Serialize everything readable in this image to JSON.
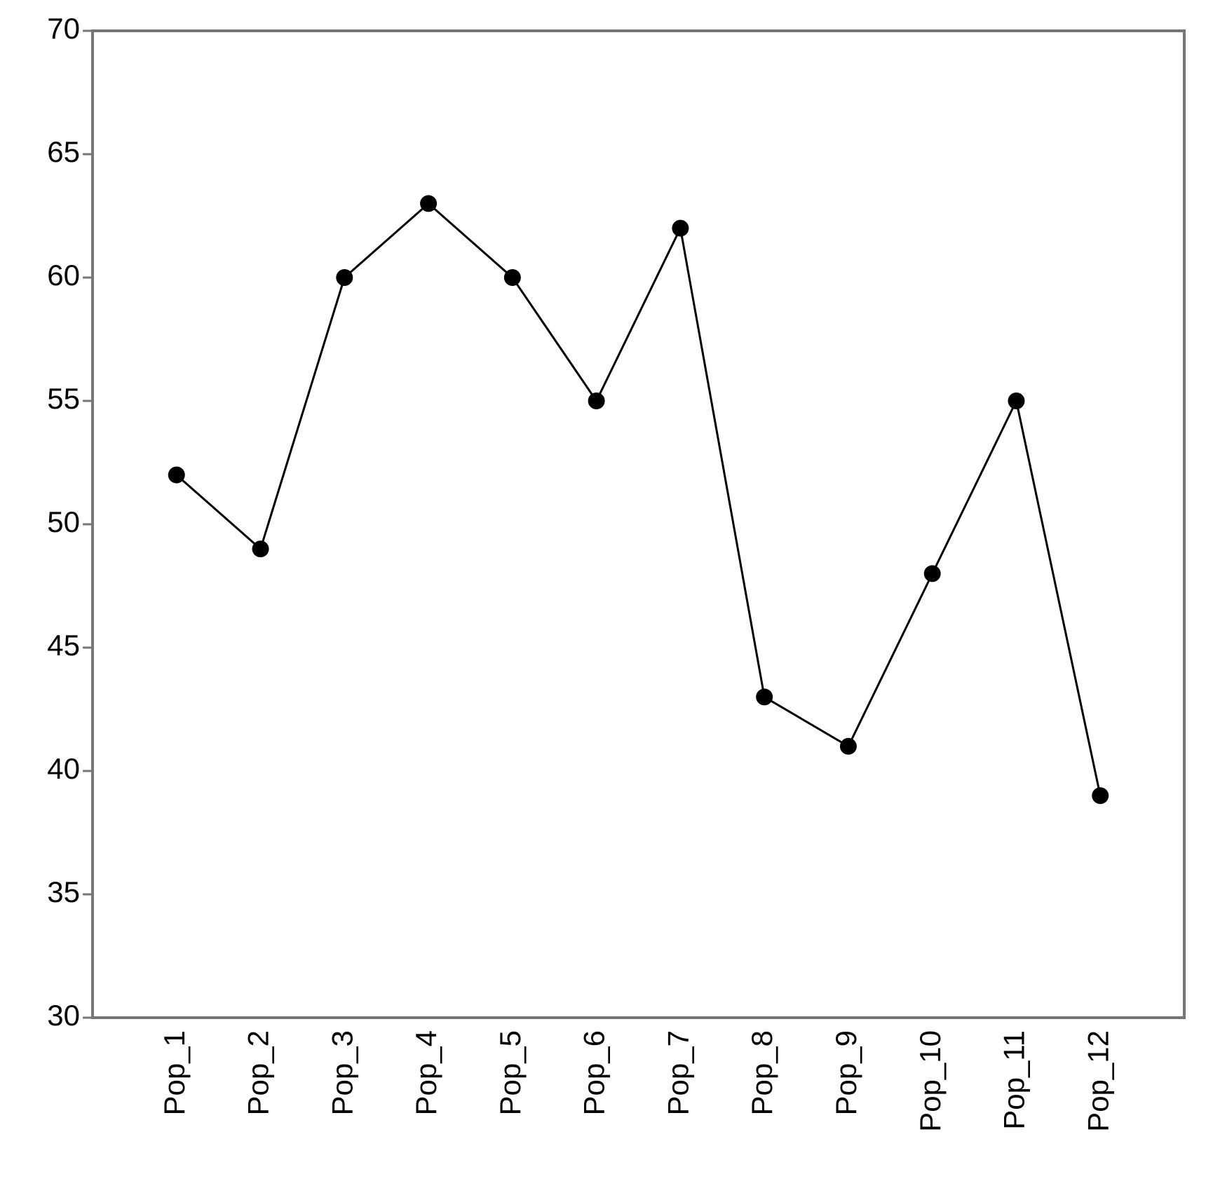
{
  "chart_data": {
    "type": "line",
    "categories": [
      "Pop_1",
      "Pop_2",
      "Pop_3",
      "Pop_4",
      "Pop_5",
      "Pop_6",
      "Pop_7",
      "Pop_8",
      "Pop_9",
      "Pop_10",
      "Pop_11",
      "Pop_12"
    ],
    "values": [
      52,
      49,
      60,
      63,
      60,
      55,
      62,
      43,
      41,
      48,
      55,
      39
    ],
    "color": "#000000",
    "ylim": [
      30,
      70
    ],
    "yticks": [
      30,
      35,
      40,
      45,
      50,
      55,
      60,
      65,
      70
    ],
    "grid": false
  }
}
